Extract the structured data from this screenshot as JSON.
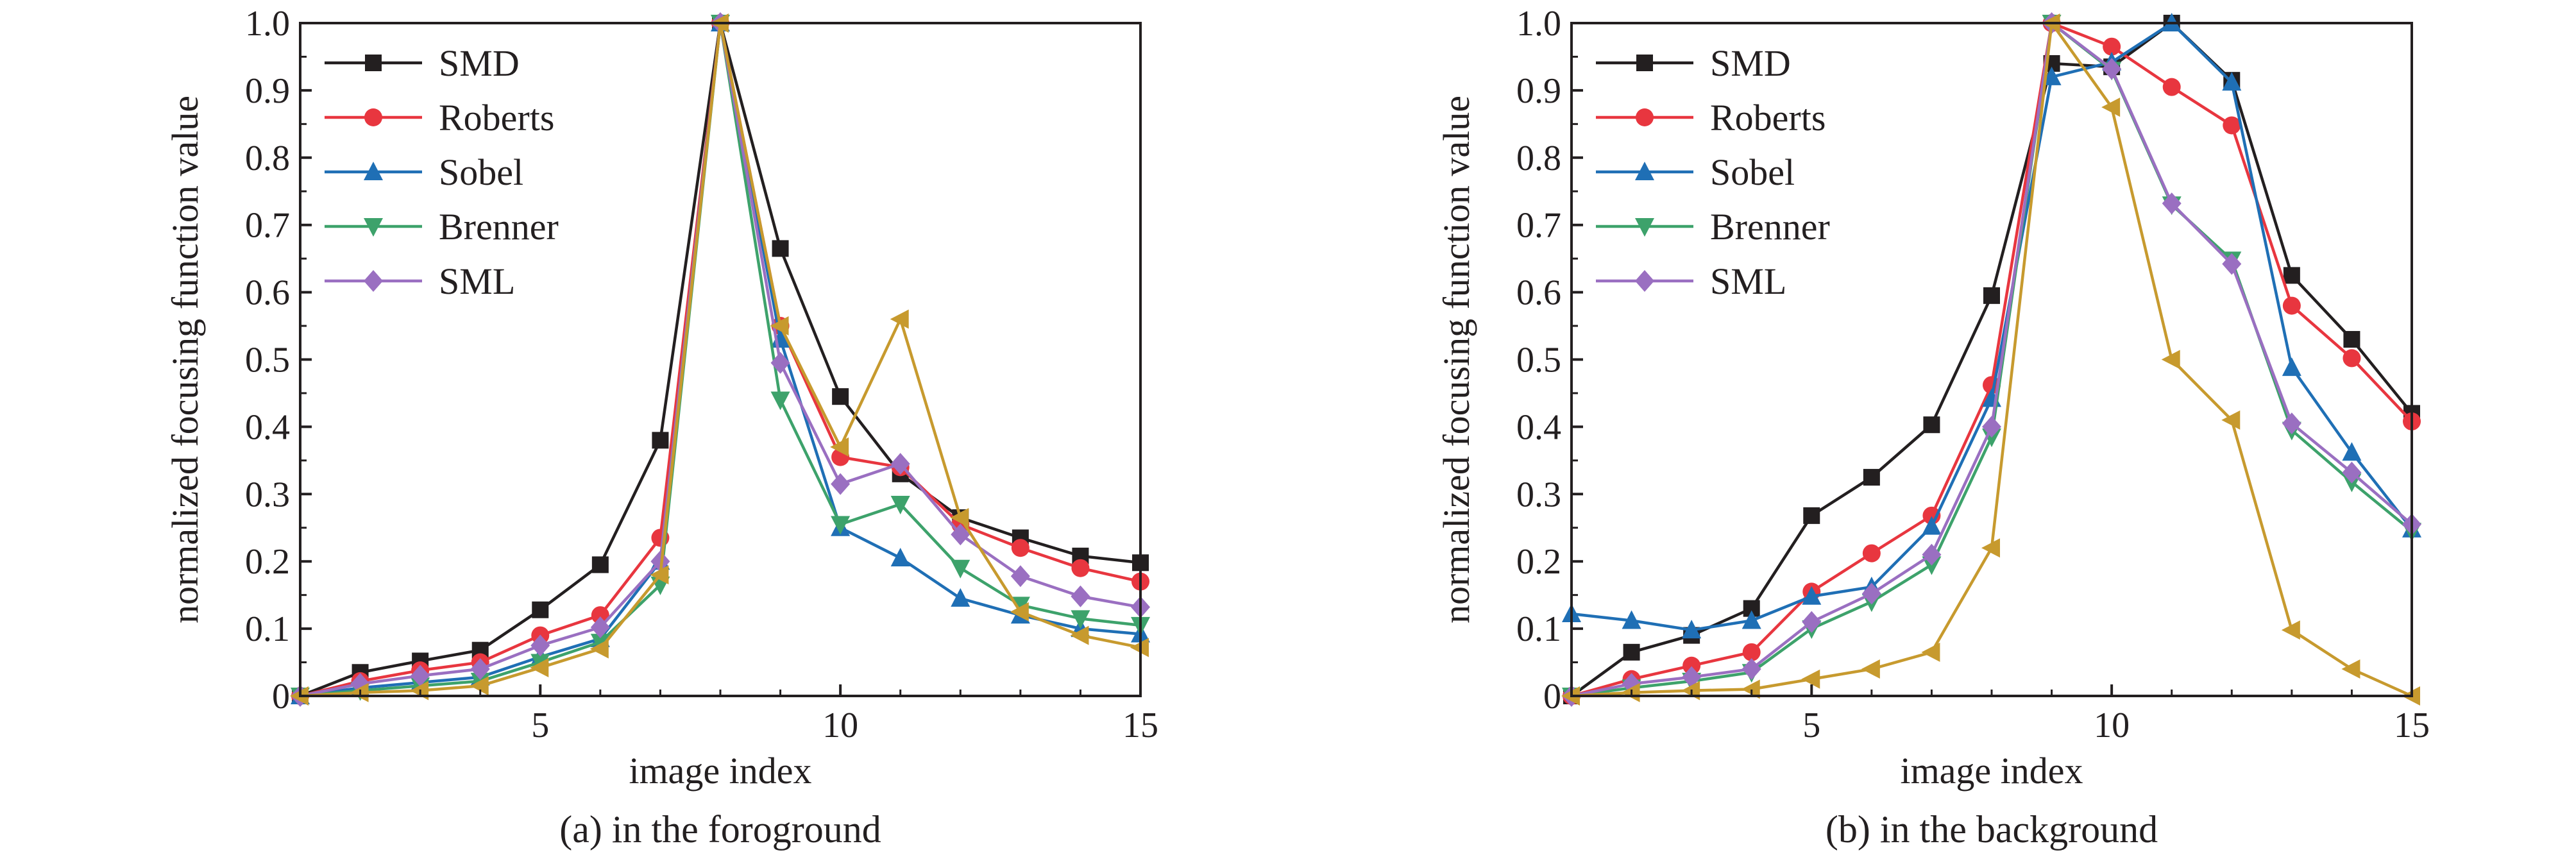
{
  "chart_data": [
    {
      "type": "line",
      "caption": "(a) in the foroground",
      "xlabel": "image index",
      "ylabel": "normalized focusing function value",
      "xlim": [
        1,
        15
      ],
      "ylim": [
        0,
        1.0
      ],
      "xticks": [
        5,
        10,
        15
      ],
      "xtick_labels": [
        "5",
        "10",
        "15"
      ],
      "yticks": [
        0,
        0.1,
        0.2,
        0.3,
        0.4,
        0.5,
        0.6,
        0.7,
        0.8,
        0.9,
        1.0
      ],
      "ytick_labels": [
        "0",
        "0.1",
        "0.2",
        "0.3",
        "0.4",
        "0.5",
        "0.6",
        "0.7",
        "0.8",
        "0.9",
        "1.0"
      ],
      "grid": false,
      "legend_position": "top-left",
      "x": [
        1,
        2,
        3,
        4,
        5,
        6,
        7,
        8,
        9,
        10,
        11,
        12,
        13,
        14,
        15
      ],
      "series": [
        {
          "name": "SMD",
          "color": "#231f20",
          "marker": "square",
          "values": [
            0,
            0.035,
            0.052,
            0.068,
            0.128,
            0.195,
            0.38,
            1.0,
            0.665,
            0.445,
            0.33,
            0.265,
            0.235,
            0.208,
            0.198
          ]
        },
        {
          "name": "Roberts",
          "color": "#e8363f",
          "marker": "circle",
          "values": [
            0,
            0.022,
            0.038,
            0.05,
            0.09,
            0.12,
            0.235,
            1.0,
            0.55,
            0.355,
            0.34,
            0.255,
            0.22,
            0.19,
            0.17
          ]
        },
        {
          "name": "Sobel",
          "color": "#1f6fb5",
          "marker": "triangle-up",
          "values": [
            0,
            0.012,
            0.02,
            0.028,
            0.058,
            0.085,
            0.2,
            1.0,
            0.53,
            0.25,
            0.205,
            0.145,
            0.12,
            0.1,
            0.092
          ]
        },
        {
          "name": "Brenner",
          "color": "#3da26b",
          "marker": "triangle-down",
          "values": [
            0,
            0.008,
            0.015,
            0.022,
            0.05,
            0.08,
            0.165,
            1.0,
            0.44,
            0.255,
            0.285,
            0.19,
            0.135,
            0.115,
            0.105
          ]
        },
        {
          "name": "SML",
          "color": "#9a6fc1",
          "marker": "diamond",
          "values": [
            0,
            0.018,
            0.03,
            0.04,
            0.075,
            0.102,
            0.2,
            1.0,
            0.495,
            0.315,
            0.345,
            0.24,
            0.178,
            0.148,
            0.132
          ]
        },
        {
          "color": "#c79a2e",
          "marker": "triangle-left",
          "values": [
            0,
            0.005,
            0.008,
            0.015,
            0.042,
            0.07,
            0.18,
            1.0,
            0.55,
            0.37,
            0.56,
            0.265,
            0.125,
            0.09,
            0.072
          ]
        }
      ]
    },
    {
      "type": "line",
      "caption": "(b) in the background",
      "xlabel": "image index",
      "ylabel": "normalized focusing function value",
      "xlim": [
        1,
        15
      ],
      "ylim": [
        0,
        1.0
      ],
      "xticks": [
        5,
        10,
        15
      ],
      "xtick_labels": [
        "5",
        "10",
        "15"
      ],
      "yticks": [
        0,
        0.1,
        0.2,
        0.3,
        0.4,
        0.5,
        0.6,
        0.7,
        0.8,
        0.9,
        1.0
      ],
      "ytick_labels": [
        "0",
        "0.1",
        "0.2",
        "0.3",
        "0.4",
        "0.5",
        "0.6",
        "0.7",
        "0.8",
        "0.9",
        "1.0"
      ],
      "grid": false,
      "legend_position": "top-left",
      "x": [
        1,
        2,
        3,
        4,
        5,
        6,
        7,
        8,
        9,
        10,
        11,
        12,
        13,
        14,
        15
      ],
      "series": [
        {
          "name": "SMD",
          "color": "#231f20",
          "marker": "square",
          "values": [
            0,
            0.065,
            0.09,
            0.13,
            0.268,
            0.325,
            0.403,
            0.595,
            0.94,
            0.935,
            1.0,
            0.915,
            0.625,
            0.53,
            0.42
          ]
        },
        {
          "name": "Roberts",
          "color": "#e8363f",
          "marker": "circle",
          "values": [
            0,
            0.025,
            0.045,
            0.065,
            0.155,
            0.212,
            0.268,
            0.462,
            1.0,
            0.965,
            0.905,
            0.848,
            0.58,
            0.502,
            0.408
          ]
        },
        {
          "name": "Sobel",
          "color": "#1f6fb5",
          "marker": "triangle-up",
          "values": [
            0.122,
            0.112,
            0.098,
            0.112,
            0.148,
            0.162,
            0.252,
            0.442,
            0.92,
            0.942,
            1.0,
            0.912,
            0.488,
            0.362,
            0.248
          ]
        },
        {
          "name": "Brenner",
          "color": "#3da26b",
          "marker": "triangle-down",
          "values": [
            0,
            0.012,
            0.022,
            0.035,
            0.1,
            0.14,
            0.195,
            0.385,
            1.0,
            0.93,
            0.73,
            0.648,
            0.395,
            0.318,
            0.245
          ]
        },
        {
          "name": "SML",
          "color": "#9a6fc1",
          "marker": "diamond",
          "values": [
            0,
            0.018,
            0.028,
            0.04,
            0.11,
            0.152,
            0.21,
            0.4,
            1.0,
            0.932,
            0.732,
            0.642,
            0.405,
            0.332,
            0.255
          ]
        },
        {
          "color": "#c79a2e",
          "marker": "triangle-left",
          "values": [
            0,
            0.005,
            0.008,
            0.01,
            0.025,
            0.04,
            0.065,
            0.22,
            1.0,
            0.875,
            0.5,
            0.41,
            0.098,
            0.04,
            0
          ]
        }
      ]
    }
  ]
}
